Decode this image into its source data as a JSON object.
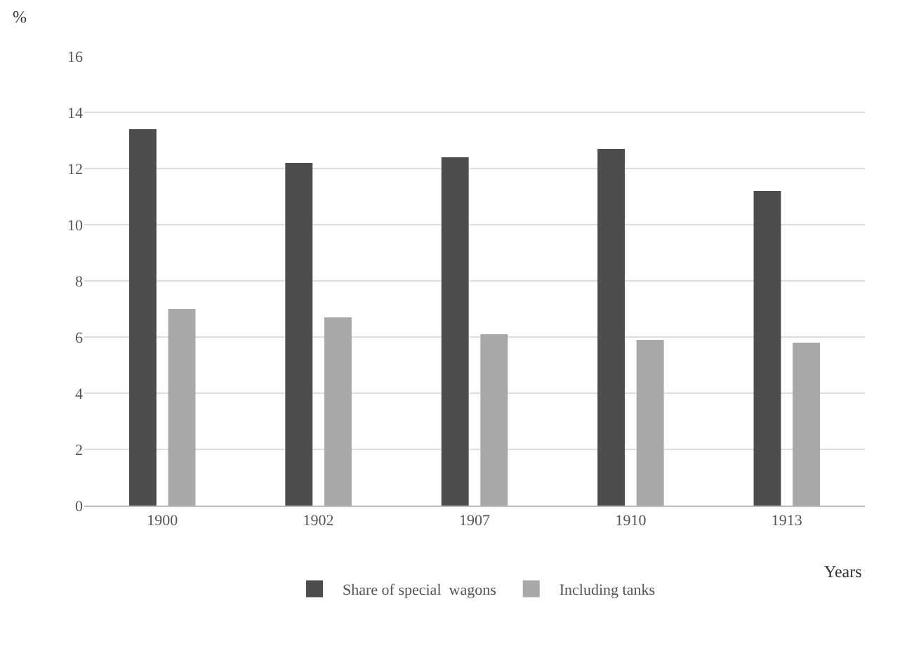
{
  "chart_data": {
    "type": "bar",
    "xlabel": "Years",
    "ylabel": "%",
    "categories": [
      "1900",
      "1902",
      "1907",
      "1910",
      "1913"
    ],
    "series": [
      {
        "name": "Share of special  wagons",
        "color": "#4d4d4d",
        "values": [
          13.4,
          12.2,
          12.4,
          12.7,
          11.2
        ]
      },
      {
        "name": "Including tanks",
        "color": "#a8a8a8",
        "values": [
          7.0,
          6.7,
          6.1,
          5.9,
          5.8
        ]
      }
    ],
    "ylim": [
      0,
      16
    ],
    "yticks": [
      0,
      2,
      4,
      6,
      8,
      10,
      12,
      14,
      16
    ],
    "grid": "y",
    "legend": "bottom"
  }
}
